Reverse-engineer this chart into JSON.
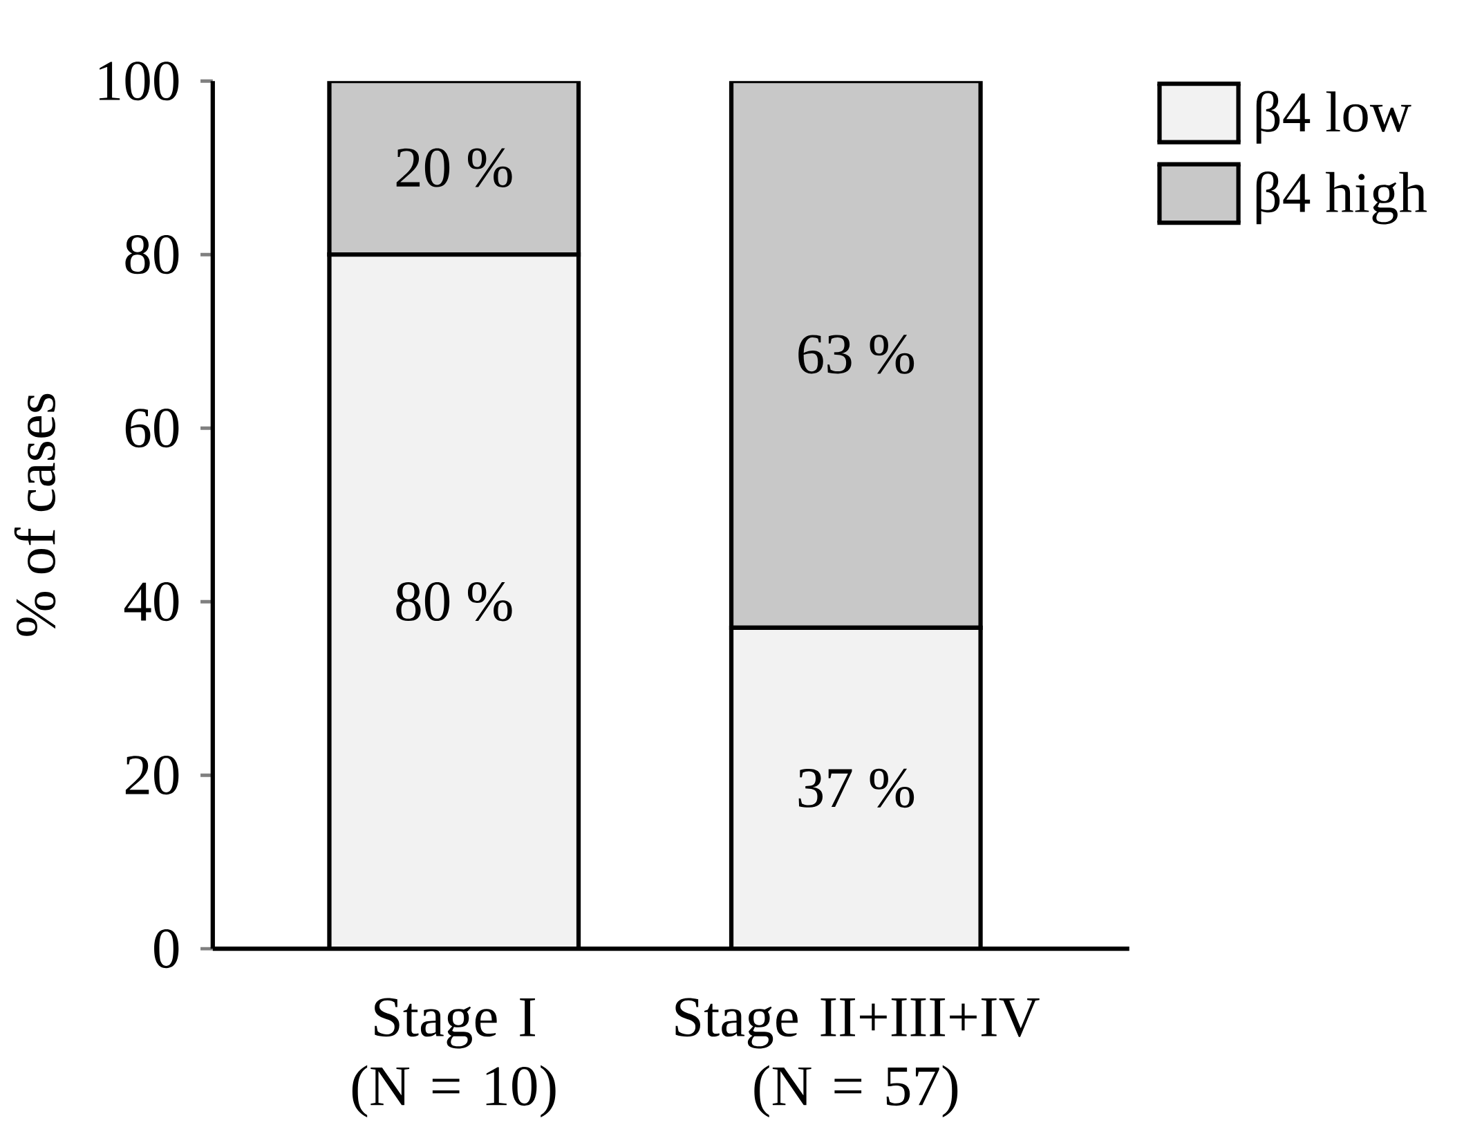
{
  "chart_data": {
    "type": "bar",
    "stacked": true,
    "ylabel": "% of cases",
    "categories": [
      "Stage I (N = 10)",
      "Stage II+III+IV (N = 57)"
    ],
    "series": [
      {
        "name": "β4 low",
        "color": "#f2f2f2",
        "values": [
          80,
          37
        ],
        "value_labels": [
          "80 %",
          "37 %"
        ]
      },
      {
        "name": "β4 high",
        "color": "#c8c8c8",
        "values": [
          20,
          63
        ],
        "value_labels": [
          "20 %",
          "63 %"
        ]
      }
    ],
    "ylim": [
      0,
      100
    ],
    "yticks": [
      0,
      20,
      40,
      60,
      80,
      100
    ],
    "legend": "top right"
  }
}
